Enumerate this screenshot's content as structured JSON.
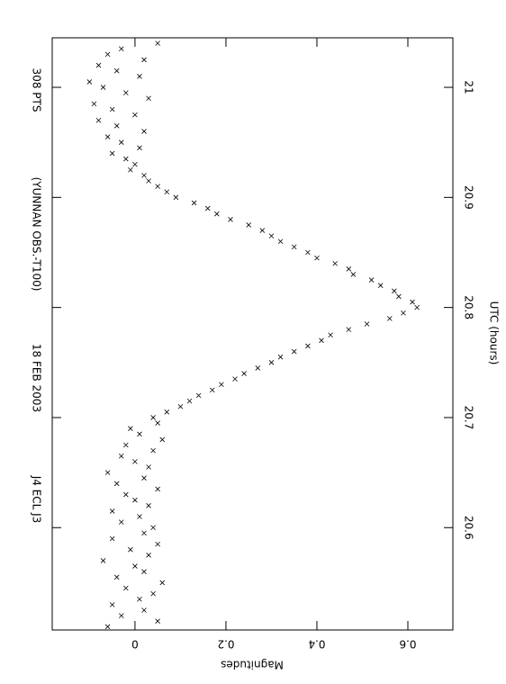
{
  "chart_data": {
    "type": "scatter",
    "annotations": [
      "J4 ECL J3",
      "18 FEB 2003",
      "(YUNNAN OBS.-T100)",
      "308 PTS"
    ],
    "x_label": "UTC (hours)",
    "y_label": "Magnitudes",
    "color": "#000000",
    "xlim": [
      20.507,
      21.045
    ],
    "xticks": [
      20.6,
      20.7,
      20.8,
      20.9,
      21
    ],
    "ylim": [
      -0.182,
      0.699
    ],
    "yticks": [
      0,
      0.2,
      0.4,
      0.6
    ],
    "x": [
      20.51,
      20.515,
      20.52,
      20.525,
      20.53,
      20.535,
      20.54,
      20.545,
      20.55,
      20.555,
      20.56,
      20.565,
      20.57,
      20.575,
      20.58,
      20.585,
      20.59,
      20.595,
      20.6,
      20.605,
      20.61,
      20.615,
      20.62,
      20.625,
      20.63,
      20.635,
      20.64,
      20.645,
      20.65,
      20.655,
      20.66,
      20.665,
      20.67,
      20.675,
      20.68,
      20.685,
      20.69,
      20.695,
      20.7,
      20.705,
      20.71,
      20.715,
      20.72,
      20.725,
      20.73,
      20.735,
      20.74,
      20.745,
      20.75,
      20.755,
      20.76,
      20.765,
      20.77,
      20.775,
      20.78,
      20.785,
      20.79,
      20.795,
      20.8,
      20.805,
      20.81,
      20.815,
      20.82,
      20.825,
      20.83,
      20.835,
      20.84,
      20.845,
      20.85,
      20.855,
      20.86,
      20.865,
      20.87,
      20.875,
      20.88,
      20.885,
      20.89,
      20.895,
      20.9,
      20.905,
      20.91,
      20.915,
      20.92,
      20.925,
      20.93,
      20.935,
      20.94,
      20.945,
      20.95,
      20.955,
      20.96,
      20.965,
      20.97,
      20.975,
      20.98,
      20.985,
      20.99,
      20.995,
      21,
      21.005,
      21.01,
      21.015,
      21.02,
      21.025,
      21.03,
      21.035,
      21.04
    ],
    "y": [
      -0.06,
      0.05,
      -0.03,
      0.02,
      -0.05,
      0.01,
      0.04,
      -0.02,
      0.06,
      -0.04,
      0.02,
      0,
      -0.07,
      0.03,
      -0.01,
      0.05,
      -0.05,
      0.02,
      0.04,
      -0.03,
      0.01,
      -0.05,
      0.03,
      0,
      -0.02,
      0.05,
      -0.04,
      0.02,
      -0.06,
      0.03,
      0,
      -0.03,
      0.04,
      -0.02,
      0.06,
      0.01,
      -0.01,
      0.05,
      0.04,
      0.07,
      0.1,
      0.12,
      0.14,
      0.17,
      0.19,
      0.22,
      0.24,
      0.27,
      0.3,
      0.32,
      0.35,
      0.38,
      0.41,
      0.43,
      0.47,
      0.51,
      0.56,
      0.59,
      0.62,
      0.61,
      0.58,
      0.57,
      0.54,
      0.52,
      0.48,
      0.47,
      0.44,
      0.4,
      0.38,
      0.35,
      0.32,
      0.3,
      0.28,
      0.25,
      0.21,
      0.18,
      0.16,
      0.13,
      0.09,
      0.07,
      0.05,
      0.03,
      0.02,
      -0.01,
      0,
      -0.02,
      -0.05,
      0.01,
      -0.03,
      -0.06,
      0.02,
      -0.04,
      -0.08,
      0,
      -0.05,
      -0.09,
      0.03,
      -0.02,
      -0.07,
      -0.1,
      0.01,
      -0.04,
      -0.08,
      0.02,
      -0.06,
      -0.03,
      0.05
    ]
  }
}
